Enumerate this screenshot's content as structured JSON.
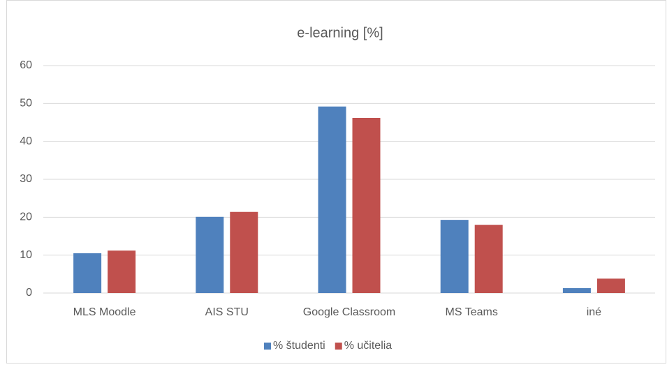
{
  "chart_data": {
    "type": "bar",
    "title": "e-learning [%]",
    "categories": [
      "MLS Moodle",
      "AIS STU",
      "Google Classroom",
      "MS Teams",
      "iné"
    ],
    "series": [
      {
        "name": "% študenti",
        "color": "#4f81bd",
        "values": [
          10.5,
          20.1,
          49.2,
          19.3,
          1.3
        ]
      },
      {
        "name": "% učitelia",
        "color": "#c0504d",
        "values": [
          11.2,
          21.4,
          46.2,
          18.0,
          3.8
        ]
      }
    ],
    "ylim": [
      0,
      60
    ],
    "yticks": [
      0,
      10,
      20,
      30,
      40,
      50,
      60
    ],
    "grid": true,
    "legend": "bottom"
  }
}
